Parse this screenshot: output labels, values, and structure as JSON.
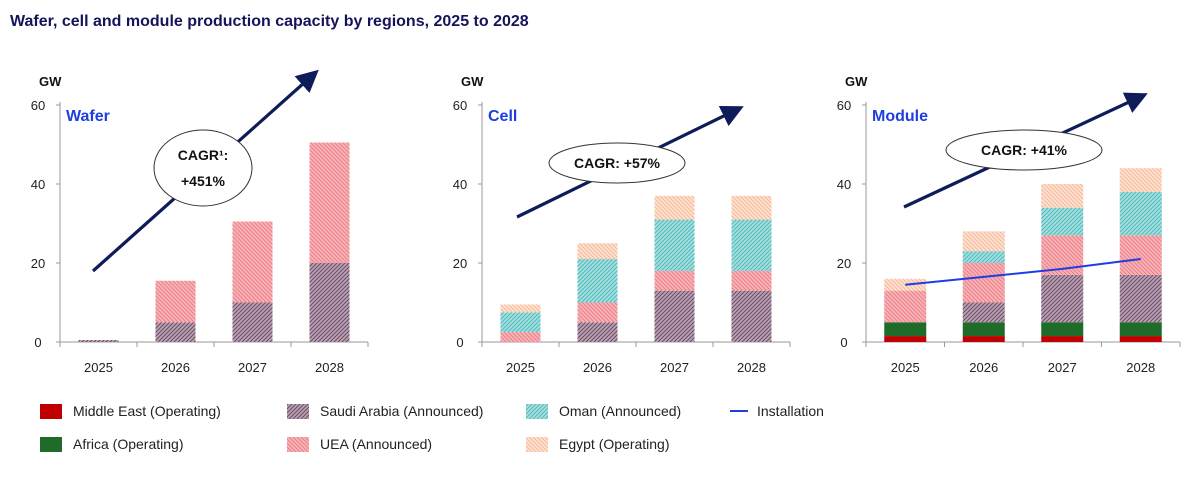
{
  "title": "Wafer, cell and module production capacity by regions, 2025 to 2028",
  "colors": {
    "middle_east": "#c00000",
    "africa": "#1e6b2a",
    "saudi_arabia": "#8a6a82",
    "uea": "#f4a0a6",
    "oman": "#7ccfcf",
    "egypt": "#fad2bc",
    "installation": "#1f3ee0",
    "arrow": "#0f1c5a",
    "label": "#1f3ee0"
  },
  "legend": [
    {
      "key": "middle_east",
      "label": "Middle East (Operating)",
      "type": "box"
    },
    {
      "key": "saudi_arabia",
      "label": "Saudi Arabia (Announced)",
      "type": "box"
    },
    {
      "key": "oman",
      "label": "Oman (Announced)",
      "type": "box"
    },
    {
      "key": "installation",
      "label": "Installation",
      "type": "line"
    },
    {
      "key": "africa",
      "label": "Africa (Operating)",
      "type": "box"
    },
    {
      "key": "uea",
      "label": "UEA (Announced)",
      "type": "box"
    },
    {
      "key": "egypt",
      "label": "Egypt (Operating)",
      "type": "box"
    }
  ],
  "chart_data": [
    {
      "type": "bar",
      "stacked": true,
      "panel_label": "Wafer",
      "ylabel": "GW",
      "ylim": [
        0,
        60
      ],
      "yticks": [
        0,
        20,
        40,
        60
      ],
      "categories": [
        "2025",
        "2026",
        "2027",
        "2028"
      ],
      "series": [
        {
          "name": "Middle East (Operating)",
          "key": "middle_east",
          "values": [
            0,
            0,
            0,
            0
          ]
        },
        {
          "name": "Africa (Operating)",
          "key": "africa",
          "values": [
            0,
            0,
            0,
            0
          ]
        },
        {
          "name": "Saudi Arabia (Announced)",
          "key": "saudi_arabia",
          "values": [
            0.5,
            5,
            10,
            20
          ]
        },
        {
          "name": "UEA (Announced)",
          "key": "uea",
          "values": [
            0,
            10.5,
            20.5,
            30.5
          ]
        },
        {
          "name": "Oman (Announced)",
          "key": "oman",
          "values": [
            0,
            0,
            0,
            0
          ]
        },
        {
          "name": "Egypt (Operating)",
          "key": "egypt",
          "values": [
            0,
            0,
            0,
            0
          ]
        }
      ],
      "annotation": {
        "lines": [
          "CAGR¹:",
          "+451%"
        ]
      }
    },
    {
      "type": "bar",
      "stacked": true,
      "panel_label": "Cell",
      "ylabel": "GW",
      "ylim": [
        0,
        60
      ],
      "yticks": [
        0,
        20,
        40,
        60
      ],
      "categories": [
        "2025",
        "2026",
        "2027",
        "2028"
      ],
      "series": [
        {
          "name": "Middle East (Operating)",
          "key": "middle_east",
          "values": [
            0,
            0,
            0,
            0
          ]
        },
        {
          "name": "Africa (Operating)",
          "key": "africa",
          "values": [
            0,
            0,
            0,
            0
          ]
        },
        {
          "name": "Saudi Arabia (Announced)",
          "key": "saudi_arabia",
          "values": [
            0,
            5,
            13,
            13
          ]
        },
        {
          "name": "UEA (Announced)",
          "key": "uea",
          "values": [
            2.5,
            5,
            5,
            5
          ]
        },
        {
          "name": "Oman (Announced)",
          "key": "oman",
          "values": [
            5,
            11,
            13,
            13
          ]
        },
        {
          "name": "Egypt (Operating)",
          "key": "egypt",
          "values": [
            2,
            4,
            6,
            6
          ]
        }
      ],
      "annotation": {
        "lines": [
          "CAGR: +57%"
        ]
      }
    },
    {
      "type": "bar",
      "stacked": true,
      "panel_label": "Module",
      "ylabel": "GW",
      "ylim": [
        0,
        60
      ],
      "yticks": [
        0,
        20,
        40,
        60
      ],
      "categories": [
        "2025",
        "2026",
        "2027",
        "2028"
      ],
      "series": [
        {
          "name": "Middle East (Operating)",
          "key": "middle_east",
          "values": [
            1.5,
            1.5,
            1.5,
            1.5
          ]
        },
        {
          "name": "Africa (Operating)",
          "key": "africa",
          "values": [
            3.5,
            3.5,
            3.5,
            3.5
          ]
        },
        {
          "name": "Saudi Arabia (Announced)",
          "key": "saudi_arabia",
          "values": [
            0,
            5,
            12,
            12
          ]
        },
        {
          "name": "UEA (Announced)",
          "key": "uea",
          "values": [
            8,
            10,
            10,
            10
          ]
        },
        {
          "name": "Oman (Announced)",
          "key": "oman",
          "values": [
            0,
            3,
            7,
            11
          ]
        },
        {
          "name": "Egypt (Operating)",
          "key": "egypt",
          "values": [
            3,
            5,
            6,
            6
          ]
        }
      ],
      "line": {
        "name": "Installation",
        "key": "installation",
        "values": [
          14.5,
          16.5,
          18.5,
          21
        ]
      },
      "annotation": {
        "lines": [
          "CAGR: +41%"
        ]
      }
    }
  ]
}
